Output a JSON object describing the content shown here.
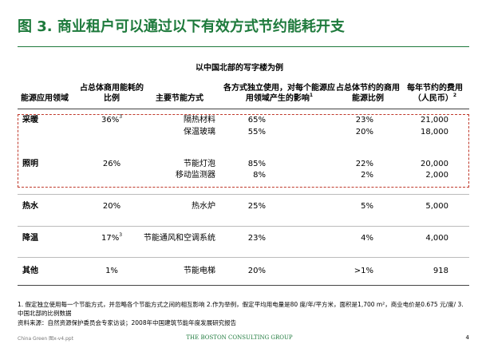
{
  "header": {
    "title": "图 3. 商业租户可以通过以下有效方式节约能耗开支",
    "subtitle": "以中国北部的写字楼为例"
  },
  "table": {
    "columns": [
      {
        "text": "能源应用领域"
      },
      {
        "text": "占总体商用能耗的比例"
      },
      {
        "text": "主要节能方式"
      },
      {
        "text": "各方式独立使用，对每个能源应用领域产生的影响",
        "note": "1"
      },
      {
        "text": "占总体节约的商用能源比例"
      },
      {
        "text": "每年节约的费用（人民币）",
        "note": "2"
      }
    ],
    "rows": [
      {
        "area": "采暖",
        "share": "36%",
        "share_note": "3",
        "measures": [
          {
            "method": "隔热材料",
            "impact": "65%",
            "saving": "23%",
            "cost": "21,000"
          },
          {
            "method": "保温玻璃",
            "impact": "55%",
            "saving": "20%",
            "cost": "18,000"
          }
        ]
      },
      {
        "area": "照明",
        "share": "26%",
        "measures": [
          {
            "method": "节能灯泡",
            "impact": "85%",
            "saving": "22%",
            "cost": "20,000"
          },
          {
            "method": "移动监测器",
            "impact": "8%",
            "saving": "2%",
            "cost": "2,000"
          }
        ]
      },
      {
        "area": "热水",
        "share": "20%",
        "measures": [
          {
            "method": "热水炉",
            "impact": "25%",
            "saving": "5%",
            "cost": "5,000"
          }
        ]
      },
      {
        "area": "降温",
        "share": "17%",
        "share_note": "3",
        "measures": [
          {
            "method": "节能通风和空调系统",
            "impact": "23%",
            "saving": "4%",
            "cost": "4,000"
          }
        ]
      },
      {
        "area": "其他",
        "share": "1%",
        "measures": [
          {
            "method": "节能电梯",
            "impact": "20%",
            "saving": ">1%",
            "cost": "918"
          }
        ]
      }
    ]
  },
  "footnotes": [
    "1. 假定独立使用每一个节能方式，并忽略各个节能方式之间的相互影响   2.作为举例，假定平均用电量是80 度/年/平方米，面积是1,700 m²，商业电价是0.675 元/度/ 3. 中国北部的比例数据",
    "资料来源：自然资源保护委员会专家访谈；2008年中国建筑节能年度发展研究报告"
  ],
  "footer": {
    "file": "China Green 图x-v4.ppt",
    "brand": "THE BOSTON CONSULTING GROUP",
    "page": "4"
  }
}
